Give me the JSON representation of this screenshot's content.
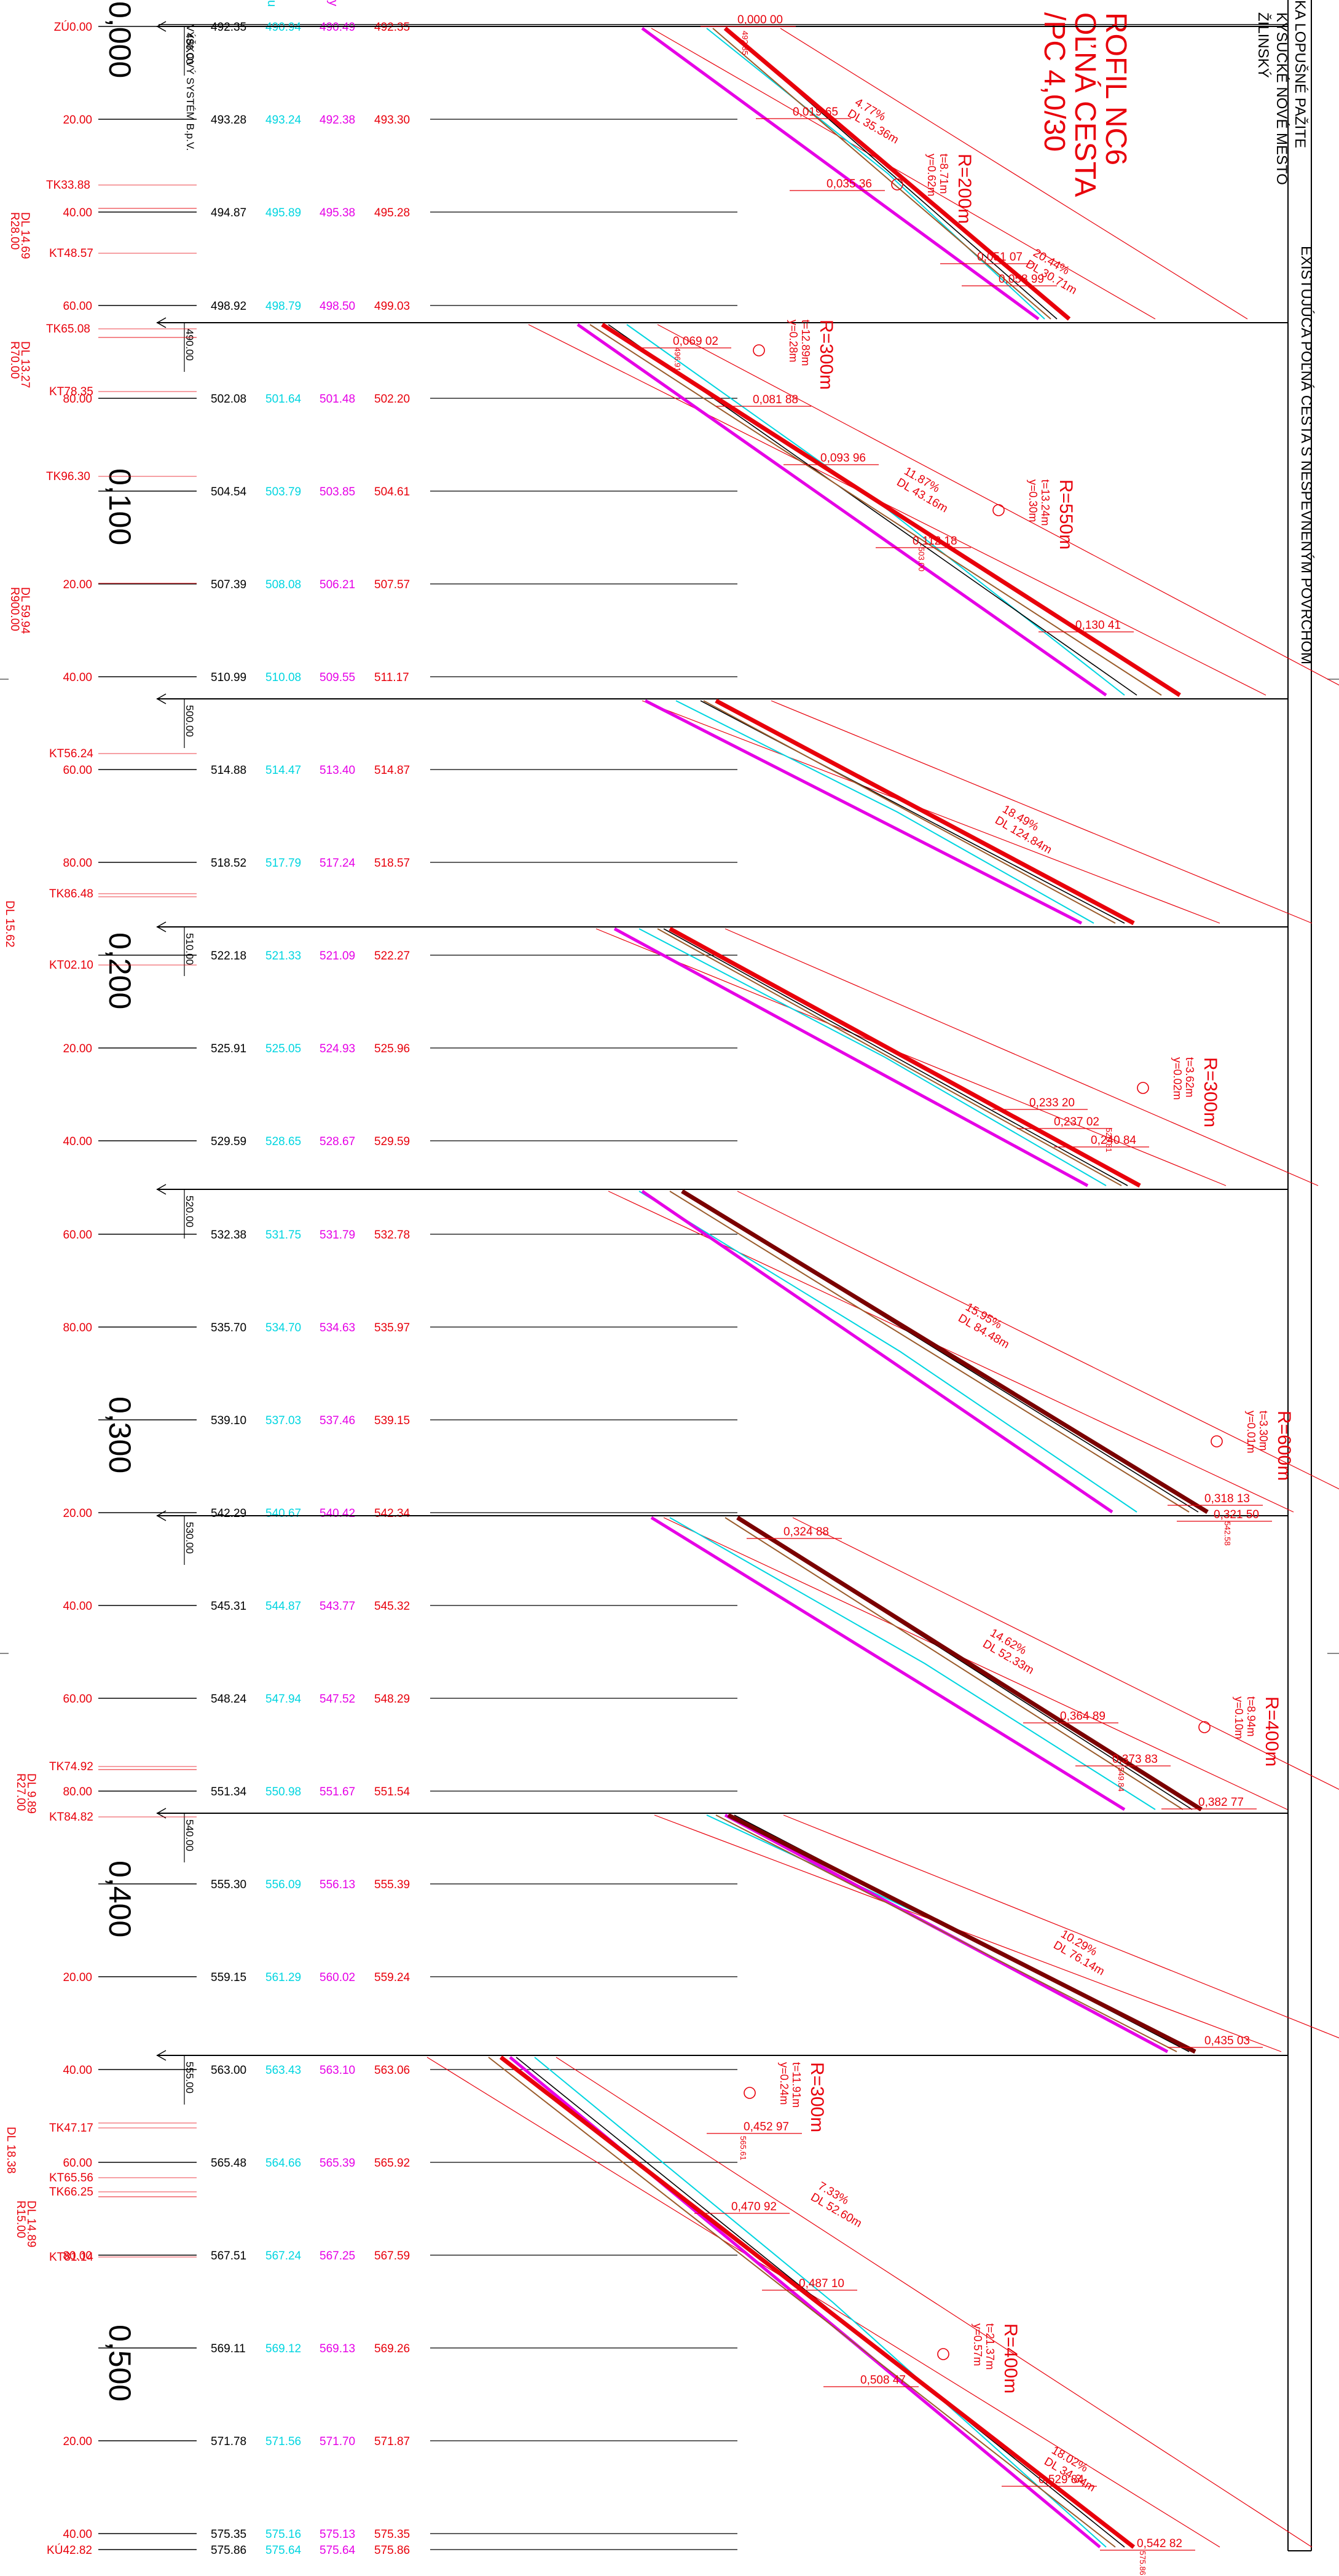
{
  "colors": {
    "red": "#e8000b",
    "dark_red": "#7a0000",
    "black": "#000000",
    "cyan": "#00d5e0",
    "magenta": "#e600e6",
    "brown": "#9a5b2a",
    "blue": "#5566cc"
  },
  "header": {
    "title_lines": [
      "ROFIL NC6",
      "OĽNÁ CESTA",
      "/PC 4,0/30"
    ],
    "location_lines": [
      "KA  LOPUŠNÉ PAŽITE",
      "KYSUCKÉ NOVÉ MESTO",
      "ŽILINSKÝ"
    ],
    "side_note": "EXISTUJÚCA POĽNÁ CESTA S NESPEVNENÝM POVRCHOM",
    "vertical_system": "VÝŠKOVÝ SYSTÉM B.p.V.",
    "legend_cyan": "u",
    "legend_magenta": "y"
  },
  "km_labels": [
    "0,000",
    "0,100",
    "0,200",
    "0,300",
    "0,400",
    "0,500"
  ],
  "band_refs": [
    "480.00",
    "490.00",
    "500.00",
    "510.00",
    "520.00",
    "530.00",
    "540.00",
    "555.00"
  ],
  "station_rows": [
    {
      "st": "ZÚ0.00",
      "h1": "492.35",
      "h2": "490.94",
      "h3": "490.49",
      "h4": "492.35"
    },
    {
      "st": "20.00",
      "h1": "493.28",
      "h2": "493.24",
      "h3": "492.38",
      "h4": "493.30"
    },
    {
      "st": "40.00",
      "h1": "494.87",
      "h2": "495.89",
      "h3": "495.38",
      "h4": "495.28"
    },
    {
      "st": "60.00",
      "h1": "498.92",
      "h2": "498.79",
      "h3": "498.50",
      "h4": "499.03"
    },
    {
      "st": "80.00",
      "h1": "502.08",
      "h2": "501.64",
      "h3": "501.48",
      "h4": "502.20"
    },
    {
      "st": "0,100",
      "h1": "504.54",
      "h2": "503.79",
      "h3": "503.85",
      "h4": "504.61"
    },
    {
      "st": "20.00",
      "h1": "507.39",
      "h2": "508.08",
      "h3": "506.21",
      "h4": "507.57"
    },
    {
      "st": "40.00",
      "h1": "510.99",
      "h2": "510.08",
      "h3": "509.55",
      "h4": "511.17"
    },
    {
      "st": "60.00",
      "h1": "514.88",
      "h2": "514.47",
      "h3": "513.40",
      "h4": "514.87"
    },
    {
      "st": "80.00",
      "h1": "518.52",
      "h2": "517.79",
      "h3": "517.24",
      "h4": "518.57"
    },
    {
      "st": "0,200",
      "h1": "522.18",
      "h2": "521.33",
      "h3": "521.09",
      "h4": "522.27"
    },
    {
      "st": "20.00",
      "h1": "525.91",
      "h2": "525.05",
      "h3": "524.93",
      "h4": "525.96"
    },
    {
      "st": "40.00",
      "h1": "529.59",
      "h2": "528.65",
      "h3": "528.67",
      "h4": "529.59"
    },
    {
      "st": "60.00",
      "h1": "532.38",
      "h2": "531.75",
      "h3": "531.79",
      "h4": "532.78"
    },
    {
      "st": "80.00",
      "h1": "535.70",
      "h2": "534.70",
      "h3": "534.63",
      "h4": "535.97"
    },
    {
      "st": "0,300",
      "h1": "539.10",
      "h2": "537.03",
      "h3": "537.46",
      "h4": "539.15"
    },
    {
      "st": "20.00",
      "h1": "542.29",
      "h2": "540.67",
      "h3": "540.42",
      "h4": "542.34"
    },
    {
      "st": "40.00",
      "h1": "545.31",
      "h2": "544.87",
      "h3": "543.77",
      "h4": "545.32"
    },
    {
      "st": "60.00",
      "h1": "548.24",
      "h2": "547.94",
      "h3": "547.52",
      "h4": "548.29"
    },
    {
      "st": "80.00",
      "h1": "551.34",
      "h2": "550.98",
      "h3": "551.67",
      "h4": "551.54"
    },
    {
      "st": "0,400",
      "h1": "555.30",
      "h2": "556.09",
      "h3": "556.13",
      "h4": "555.39"
    },
    {
      "st": "20.00",
      "h1": "559.15",
      "h2": "561.29",
      "h3": "560.02",
      "h4": "559.24"
    },
    {
      "st": "40.00",
      "h1": "563.00",
      "h2": "563.43",
      "h3": "563.10",
      "h4": "563.06"
    },
    {
      "st": "60.00",
      "h1": "565.48",
      "h2": "564.66",
      "h3": "565.39",
      "h4": "565.92"
    },
    {
      "st": "80.00",
      "h1": "567.51",
      "h2": "567.24",
      "h3": "567.25",
      "h4": "567.59"
    },
    {
      "st": "0,500",
      "h1": "569.11",
      "h2": "569.12",
      "h3": "569.13",
      "h4": "569.26"
    },
    {
      "st": "20.00",
      "h1": "571.78",
      "h2": "571.56",
      "h3": "571.70",
      "h4": "571.87"
    },
    {
      "st": "40.00",
      "h1": "575.35",
      "h2": "575.16",
      "h3": "575.13",
      "h4": "575.35"
    },
    {
      "st": "KÚ42.82",
      "h1": "575.86",
      "h2": "575.64",
      "h3": "575.64",
      "h4": "575.86"
    }
  ],
  "curve_marks": [
    "TK33.88",
    "DL 14.69",
    "R28.00",
    "KT48.57",
    "TK65.08",
    "DL 13.27",
    "R70.00",
    "KT78.35",
    "TK96.30",
    "DL 59.94",
    "R900.00",
    "KT56.24",
    "TK86.48",
    "DL 15.62",
    "KT02.10",
    "TK74.92",
    "DL 9.89",
    "R27.00",
    "KT84.82",
    "TK47.17",
    "DL 18.38",
    "KT65.56",
    "TK66.25",
    "DL 14.89",
    "R15.00",
    "KT81.14"
  ],
  "vertical_curves": [
    {
      "r": "R=200m",
      "t": "t=8.71m",
      "y": "y=0.62m"
    },
    {
      "r": "R=300m",
      "t": "t=12.89m",
      "y": "y=0.28m"
    },
    {
      "r": "R=550m",
      "t": "t=13.24m",
      "y": "y=0.30m"
    },
    {
      "r": "R=300m",
      "t": "t=3.62m",
      "y": "y=0.02m"
    },
    {
      "r": "R=600m",
      "t": "t=3.30m",
      "y": "y=0.01m"
    },
    {
      "r": "R=400m",
      "t": "t=8.94m",
      "y": "y=0.10m"
    },
    {
      "r": "R=300m",
      "t": "t=11.91m",
      "y": "y=0.24m"
    },
    {
      "r": "R=400m",
      "t": "t=21.37m",
      "y": "y=0.57m"
    }
  ],
  "slope_labels": [
    {
      "pct": "4.77%",
      "dl": "DL 35.36m"
    },
    {
      "pct": "20.44%",
      "dl": "DL 30.71m"
    },
    {
      "pct": "11.87%",
      "dl": "DL 43.16m"
    },
    {
      "pct": "18.49%",
      "dl": "DL 124.84m"
    },
    {
      "pct": "15.95%",
      "dl": "DL 84.48m"
    },
    {
      "pct": "14.62%",
      "dl": "DL 52.33m"
    },
    {
      "pct": "10.29%",
      "dl": "DL 76.14m"
    },
    {
      "pct": "7.33%",
      "dl": "DL 52.60m"
    },
    {
      "pct": "18.02%",
      "dl": "DL 34.34m"
    }
  ],
  "chainage_labels": [
    "0,000 00",
    "0,019 65",
    "0,035 36",
    "0,051 07",
    "0,058 99",
    "0,069 02",
    "0,081 88",
    "0,093 96",
    "0,112 18",
    "0,130 41",
    "0,233 20",
    "0,237 02",
    "0,240 84",
    "0,318 13",
    "0,321 50",
    "0,324 88",
    "0,364 89",
    "0,373 83",
    "0,382 77",
    "0,435 03",
    "0,452 97",
    "0,470 92",
    "0,487 10",
    "0,508 47",
    "0,529 84",
    "0,542 82"
  ],
  "small_marks": [
    "492.35",
    "496.91",
    "503.00",
    "520.81",
    "542.58",
    "549.84",
    "565.61",
    "575.86"
  ]
}
